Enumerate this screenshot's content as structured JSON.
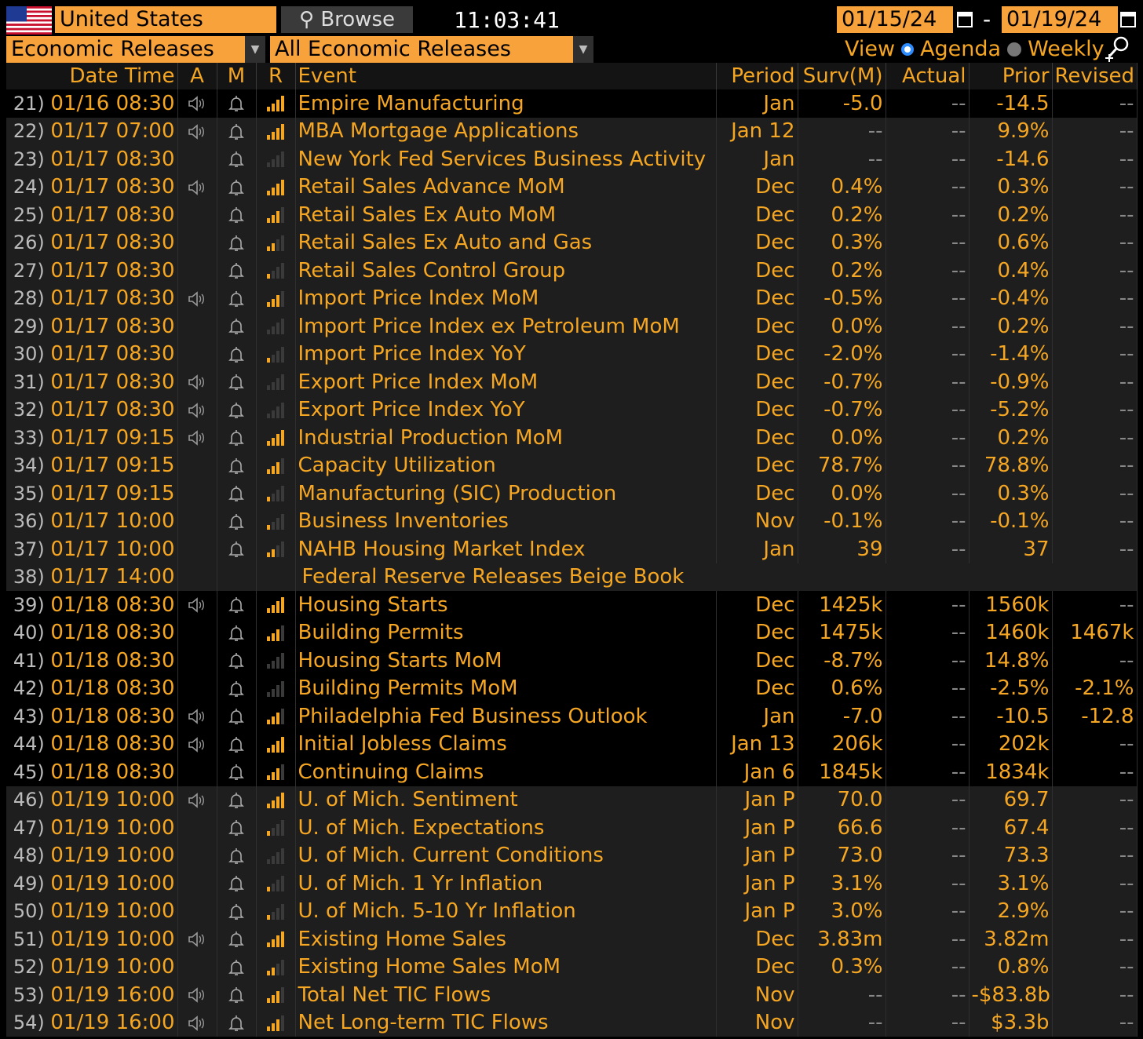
{
  "header": {
    "country": "United States",
    "browse_label": "Browse",
    "time": "11:03:41",
    "start_date": "01/15/24",
    "date_separator": "-",
    "end_date": "01/19/24",
    "filter_category": "Economic Releases",
    "filter_sub": "All Economic Releases",
    "view_label": "View",
    "view_agenda": "Agenda",
    "view_weekly": "Weekly"
  },
  "columns": [
    "Date Time",
    "A",
    "M",
    "R",
    "Event",
    "Period",
    "Surv(M)",
    "Actual",
    "Prior",
    "Revised"
  ],
  "rows": [
    {
      "n": "21)",
      "dt": "01/16 08:30",
      "alert": true,
      "r": 4,
      "event": "Empire Manufacturing",
      "period": "Jan",
      "surv": "-5.0",
      "actual": "--",
      "prior": "-14.5",
      "revised": "--",
      "shade": "black"
    },
    {
      "n": "22)",
      "dt": "01/17 07:00",
      "alert": true,
      "r": 4,
      "event": "MBA Mortgage Applications",
      "period": "Jan 12",
      "surv": "--",
      "actual": "--",
      "prior": "9.9%",
      "revised": "--",
      "shade": "gray"
    },
    {
      "n": "23)",
      "dt": "01/17 08:30",
      "alert": false,
      "r": 0,
      "event": "New York Fed Services Business Activity",
      "period": "Jan",
      "surv": "--",
      "actual": "--",
      "prior": "-14.6",
      "revised": "--",
      "shade": "gray"
    },
    {
      "n": "24)",
      "dt": "01/17 08:30",
      "alert": true,
      "r": 4,
      "event": "Retail Sales Advance MoM",
      "period": "Dec",
      "surv": "0.4%",
      "actual": "--",
      "prior": "0.3%",
      "revised": "--",
      "shade": "gray"
    },
    {
      "n": "25)",
      "dt": "01/17 08:30",
      "alert": false,
      "r": 3,
      "event": "Retail Sales Ex Auto MoM",
      "period": "Dec",
      "surv": "0.2%",
      "actual": "--",
      "prior": "0.2%",
      "revised": "--",
      "shade": "gray"
    },
    {
      "n": "26)",
      "dt": "01/17 08:30",
      "alert": false,
      "r": 2,
      "event": "Retail Sales Ex Auto and Gas",
      "period": "Dec",
      "surv": "0.3%",
      "actual": "--",
      "prior": "0.6%",
      "revised": "--",
      "shade": "gray"
    },
    {
      "n": "27)",
      "dt": "01/17 08:30",
      "alert": false,
      "r": 1,
      "event": "Retail Sales Control Group",
      "period": "Dec",
      "surv": "0.2%",
      "actual": "--",
      "prior": "0.4%",
      "revised": "--",
      "shade": "gray"
    },
    {
      "n": "28)",
      "dt": "01/17 08:30",
      "alert": true,
      "r": 3,
      "event": "Import Price Index MoM",
      "period": "Dec",
      "surv": "-0.5%",
      "actual": "--",
      "prior": "-0.4%",
      "revised": "--",
      "shade": "gray"
    },
    {
      "n": "29)",
      "dt": "01/17 08:30",
      "alert": false,
      "r": 0,
      "event": "Import Price Index ex Petroleum MoM",
      "period": "Dec",
      "surv": "0.0%",
      "actual": "--",
      "prior": "0.2%",
      "revised": "--",
      "shade": "gray"
    },
    {
      "n": "30)",
      "dt": "01/17 08:30",
      "alert": false,
      "r": 1,
      "event": "Import Price Index YoY",
      "period": "Dec",
      "surv": "-2.0%",
      "actual": "--",
      "prior": "-1.4%",
      "revised": "--",
      "shade": "gray"
    },
    {
      "n": "31)",
      "dt": "01/17 08:30",
      "alert": true,
      "r": 0,
      "event": "Export Price Index MoM",
      "period": "Dec",
      "surv": "-0.7%",
      "actual": "--",
      "prior": "-0.9%",
      "revised": "--",
      "shade": "gray"
    },
    {
      "n": "32)",
      "dt": "01/17 08:30",
      "alert": true,
      "r": 0,
      "event": "Export Price Index YoY",
      "period": "Dec",
      "surv": "-0.7%",
      "actual": "--",
      "prior": "-5.2%",
      "revised": "--",
      "shade": "gray"
    },
    {
      "n": "33)",
      "dt": "01/17 09:15",
      "alert": true,
      "r": 4,
      "event": "Industrial Production MoM",
      "period": "Dec",
      "surv": "0.0%",
      "actual": "--",
      "prior": "0.2%",
      "revised": "--",
      "shade": "gray"
    },
    {
      "n": "34)",
      "dt": "01/17 09:15",
      "alert": false,
      "r": 3,
      "event": "Capacity Utilization",
      "period": "Dec",
      "surv": "78.7%",
      "actual": "--",
      "prior": "78.8%",
      "revised": "--",
      "shade": "gray"
    },
    {
      "n": "35)",
      "dt": "01/17 09:15",
      "alert": false,
      "r": 1,
      "event": "Manufacturing (SIC) Production",
      "period": "Dec",
      "surv": "0.0%",
      "actual": "--",
      "prior": "0.3%",
      "revised": "--",
      "shade": "gray"
    },
    {
      "n": "36)",
      "dt": "01/17 10:00",
      "alert": false,
      "r": 1,
      "event": "Business Inventories",
      "period": "Nov",
      "surv": "-0.1%",
      "actual": "--",
      "prior": "-0.1%",
      "revised": "--",
      "shade": "gray"
    },
    {
      "n": "37)",
      "dt": "01/17 10:00",
      "alert": false,
      "r": 2,
      "event": "NAHB Housing Market Index",
      "period": "Jan",
      "surv": "39",
      "actual": "--",
      "prior": "37",
      "revised": "--",
      "shade": "gray"
    },
    {
      "n": "38)",
      "dt": "01/17 14:00",
      "alert": false,
      "r": -1,
      "event": "Federal Reserve Releases Beige Book",
      "period": "",
      "surv": "",
      "actual": "",
      "prior": "",
      "revised": "",
      "shade": "gray",
      "span": true
    },
    {
      "n": "39)",
      "dt": "01/18 08:30",
      "alert": true,
      "r": 4,
      "event": "Housing Starts",
      "period": "Dec",
      "surv": "1425k",
      "actual": "--",
      "prior": "1560k",
      "revised": "--",
      "shade": "black"
    },
    {
      "n": "40)",
      "dt": "01/18 08:30",
      "alert": false,
      "r": 3,
      "event": "Building Permits",
      "period": "Dec",
      "surv": "1475k",
      "actual": "--",
      "prior": "1460k",
      "revised": "1467k",
      "shade": "black"
    },
    {
      "n": "41)",
      "dt": "01/18 08:30",
      "alert": false,
      "r": 0,
      "event": "Housing Starts MoM",
      "period": "Dec",
      "surv": "-8.7%",
      "actual": "--",
      "prior": "14.8%",
      "revised": "--",
      "shade": "black"
    },
    {
      "n": "42)",
      "dt": "01/18 08:30",
      "alert": false,
      "r": 0,
      "event": "Building Permits MoM",
      "period": "Dec",
      "surv": "0.6%",
      "actual": "--",
      "prior": "-2.5%",
      "revised": "-2.1%",
      "shade": "black"
    },
    {
      "n": "43)",
      "dt": "01/18 08:30",
      "alert": true,
      "r": 3,
      "event": "Philadelphia Fed Business Outlook",
      "period": "Jan",
      "surv": "-7.0",
      "actual": "--",
      "prior": "-10.5",
      "revised": "-12.8",
      "shade": "black"
    },
    {
      "n": "44)",
      "dt": "01/18 08:30",
      "alert": true,
      "r": 4,
      "event": "Initial Jobless Claims",
      "period": "Jan 13",
      "surv": "206k",
      "actual": "--",
      "prior": "202k",
      "revised": "--",
      "shade": "black"
    },
    {
      "n": "45)",
      "dt": "01/18 08:30",
      "alert": false,
      "r": 3,
      "event": "Continuing Claims",
      "period": "Jan 6",
      "surv": "1845k",
      "actual": "--",
      "prior": "1834k",
      "revised": "--",
      "shade": "black"
    },
    {
      "n": "46)",
      "dt": "01/19 10:00",
      "alert": true,
      "r": 4,
      "event": "U. of Mich. Sentiment",
      "period": "Jan P",
      "surv": "70.0",
      "actual": "--",
      "prior": "69.7",
      "revised": "--",
      "shade": "gray"
    },
    {
      "n": "47)",
      "dt": "01/19 10:00",
      "alert": false,
      "r": 1,
      "event": "U. of Mich. Expectations",
      "period": "Jan P",
      "surv": "66.6",
      "actual": "--",
      "prior": "67.4",
      "revised": "--",
      "shade": "gray"
    },
    {
      "n": "48)",
      "dt": "01/19 10:00",
      "alert": false,
      "r": 0,
      "event": "U. of Mich. Current Conditions",
      "period": "Jan P",
      "surv": "73.0",
      "actual": "--",
      "prior": "73.3",
      "revised": "--",
      "shade": "gray"
    },
    {
      "n": "49)",
      "dt": "01/19 10:00",
      "alert": false,
      "r": 1,
      "event": "U. of Mich. 1 Yr Inflation",
      "period": "Jan P",
      "surv": "3.1%",
      "actual": "--",
      "prior": "3.1%",
      "revised": "--",
      "shade": "gray"
    },
    {
      "n": "50)",
      "dt": "01/19 10:00",
      "alert": false,
      "r": 1,
      "event": "U. of Mich. 5-10 Yr Inflation",
      "period": "Jan P",
      "surv": "3.0%",
      "actual": "--",
      "prior": "2.9%",
      "revised": "--",
      "shade": "gray"
    },
    {
      "n": "51)",
      "dt": "01/19 10:00",
      "alert": true,
      "r": 4,
      "event": "Existing Home Sales",
      "period": "Dec",
      "surv": "3.83m",
      "actual": "--",
      "prior": "3.82m",
      "revised": "--",
      "shade": "gray"
    },
    {
      "n": "52)",
      "dt": "01/19 10:00",
      "alert": false,
      "r": 2,
      "event": "Existing Home Sales MoM",
      "period": "Dec",
      "surv": "0.3%",
      "actual": "--",
      "prior": "0.8%",
      "revised": "--",
      "shade": "gray"
    },
    {
      "n": "53)",
      "dt": "01/19 16:00",
      "alert": true,
      "r": 3,
      "event": "Total Net TIC Flows",
      "period": "Nov",
      "surv": "--",
      "actual": "--",
      "prior": "-$83.8b",
      "revised": "--",
      "shade": "gray"
    },
    {
      "n": "54)",
      "dt": "01/19 16:00",
      "alert": true,
      "r": 3,
      "event": "Net Long-term TIC Flows",
      "period": "Nov",
      "surv": "--",
      "actual": "--",
      "prior": "$3.3b",
      "revised": "--",
      "shade": "gray"
    }
  ]
}
